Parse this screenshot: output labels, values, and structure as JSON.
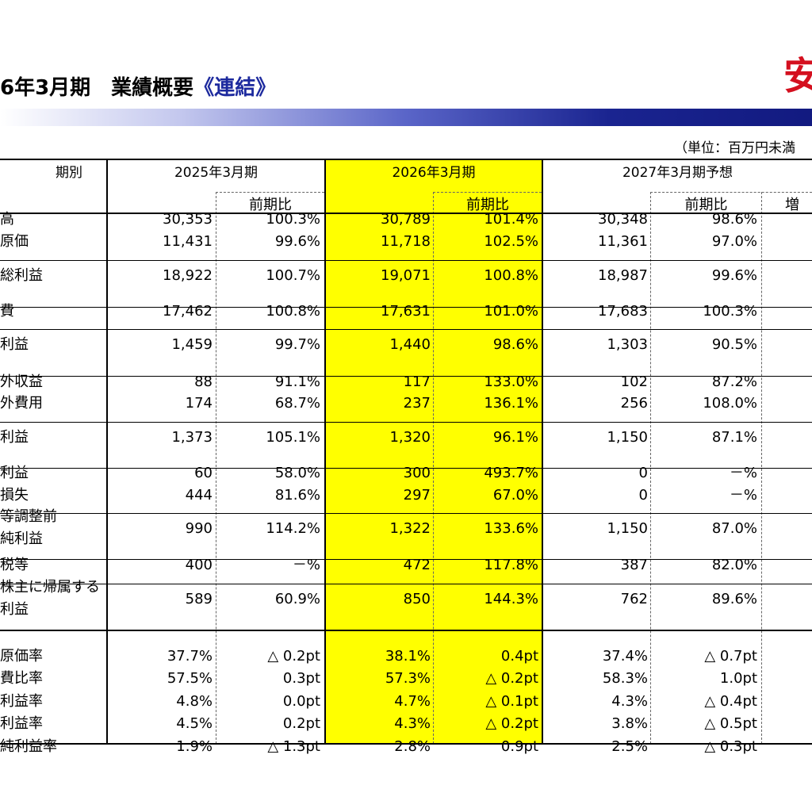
{
  "header": {
    "title_prefix": "6年3月期　業績概要",
    "title_accent": "《連結》",
    "logo_text": "安",
    "unit_label": "（単位：百万円未満"
  },
  "columns": {
    "period_label": "期別",
    "fy2025": "2025年3月期",
    "fy2026": "2026年3月期",
    "fy2027": "2027年3月期予想",
    "yoy": "前期比",
    "change": "増"
  },
  "rows": [
    {
      "label": "高",
      "v25": "30,353",
      "r25": "100.3%",
      "v26": "30,789",
      "r26": "101.4%",
      "v27": "30,348",
      "r27": "98.6%"
    },
    {
      "label": "原価",
      "v25": "11,431",
      "r25": "99.6%",
      "v26": "11,718",
      "r26": "102.5%",
      "v27": "11,361",
      "r27": "97.0%"
    },
    {
      "label": "総利益",
      "v25": "18,922",
      "r25": "100.7%",
      "v26": "19,071",
      "r26": "100.8%",
      "v27": "18,987",
      "r27": "99.6%"
    },
    {
      "label": "費",
      "v25": "17,462",
      "r25": "100.8%",
      "v26": "17,631",
      "r26": "101.0%",
      "v27": "17,683",
      "r27": "100.3%"
    },
    {
      "label": "利益",
      "v25": "1,459",
      "r25": "99.7%",
      "v26": "1,440",
      "r26": "98.6%",
      "v27": "1,303",
      "r27": "90.5%"
    },
    {
      "label": "外収益",
      "v25": "88",
      "r25": "91.1%",
      "v26": "117",
      "r26": "133.0%",
      "v27": "102",
      "r27": "87.2%"
    },
    {
      "label": "外費用",
      "v25": "174",
      "r25": "68.7%",
      "v26": "237",
      "r26": "136.1%",
      "v27": "256",
      "r27": "108.0%"
    },
    {
      "label": "利益",
      "v25": "1,373",
      "r25": "105.1%",
      "v26": "1,320",
      "r26": "96.1%",
      "v27": "1,150",
      "r27": "87.1%"
    },
    {
      "label": "利益",
      "v25": "60",
      "r25": "58.0%",
      "v26": "300",
      "r26": "493.7%",
      "v27": "0",
      "r27": "－%"
    },
    {
      "label": "損失",
      "v25": "444",
      "r25": "81.6%",
      "v26": "297",
      "r26": "67.0%",
      "v27": "0",
      "r27": "－%"
    },
    {
      "label1": "等調整前",
      "label2": "純利益",
      "v25": "990",
      "r25": "114.2%",
      "v26": "1,322",
      "r26": "133.6%",
      "v27": "1,150",
      "r27": "87.0%"
    },
    {
      "label": "税等",
      "v25": "400",
      "r25": "－%",
      "v26": "472",
      "r26": "117.8%",
      "v27": "387",
      "r27": "82.0%"
    },
    {
      "label1": "株主に帰属する",
      "label2": "利益",
      "v25": "589",
      "r25": "60.9%",
      "v26": "850",
      "r26": "144.3%",
      "v27": "762",
      "r27": "89.6%"
    },
    {
      "label": "原価率",
      "v25": "37.7%",
      "r25": "△ 0.2pt",
      "v26": "38.1%",
      "r26": "0.4pt",
      "v27": "37.4%",
      "r27": "△ 0.7pt"
    },
    {
      "label": "費比率",
      "v25": "57.5%",
      "r25": "0.3pt",
      "v26": "57.3%",
      "r26": "△ 0.2pt",
      "v27": "58.3%",
      "r27": "1.0pt"
    },
    {
      "label": "利益率",
      "v25": "4.8%",
      "r25": "0.0pt",
      "v26": "4.7%",
      "r26": "△ 0.1pt",
      "v27": "4.3%",
      "r27": "△ 0.4pt"
    },
    {
      "label": "利益率",
      "v25": "4.5%",
      "r25": "0.2pt",
      "v26": "4.3%",
      "r26": "△ 0.2pt",
      "v27": "3.8%",
      "r27": "△ 0.5pt"
    },
    {
      "label": "純利益率",
      "v25": "1.9%",
      "r25": "△ 1.3pt",
      "v26": "2.8%",
      "r26": "0.9pt",
      "v27": "2.5%",
      "r27": "△ 0.3pt"
    }
  ]
}
